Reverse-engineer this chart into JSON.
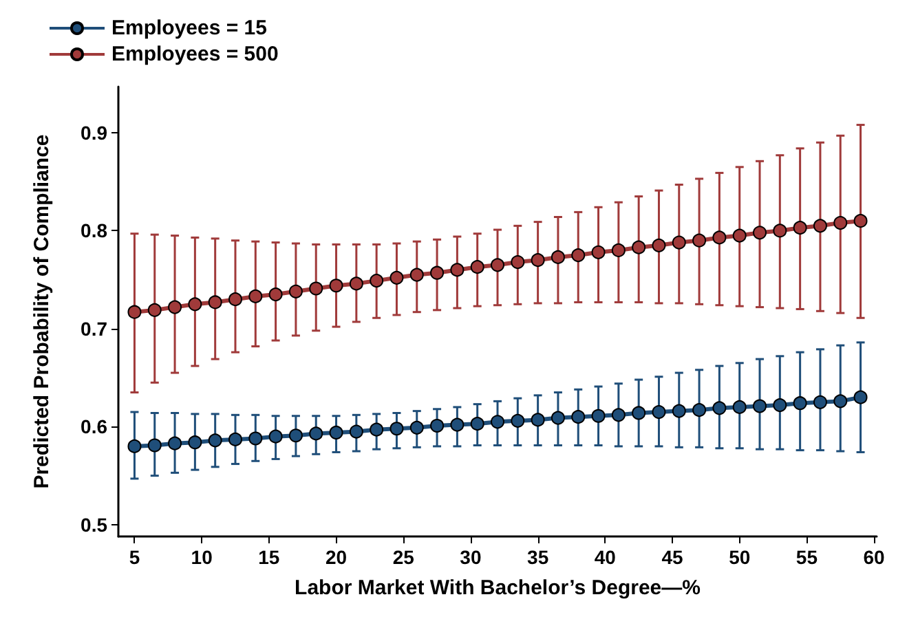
{
  "chart_data": {
    "type": "line",
    "xlabel": "Labor Market With Bachelor’s Degree—%",
    "ylabel": "Predicted Probability of Compliance",
    "x": [
      5,
      6.5,
      8,
      9.5,
      11,
      12.5,
      14,
      15.5,
      17,
      18.5,
      20,
      21.5,
      23,
      24.5,
      26,
      27.5,
      29,
      30.5,
      32,
      33.5,
      35,
      36.5,
      38,
      39.5,
      41,
      42.5,
      44,
      45.5,
      47,
      48.5,
      50,
      51.5,
      53,
      54.5,
      56,
      57.5,
      59
    ],
    "series": [
      {
        "name": "Employees = 15",
        "color": "#1f4e79",
        "values": [
          0.58,
          0.581,
          0.583,
          0.584,
          0.586,
          0.587,
          0.588,
          0.59,
          0.591,
          0.593,
          0.594,
          0.595,
          0.597,
          0.598,
          0.599,
          0.601,
          0.602,
          0.603,
          0.605,
          0.606,
          0.607,
          0.609,
          0.61,
          0.611,
          0.612,
          0.614,
          0.615,
          0.616,
          0.617,
          0.619,
          0.62,
          0.621,
          0.622,
          0.624,
          0.625,
          0.626,
          0.63
        ],
        "errors": [
          [
            0.547,
            0.615
          ],
          [
            0.55,
            0.614
          ],
          [
            0.553,
            0.614
          ],
          [
            0.556,
            0.613
          ],
          [
            0.559,
            0.613
          ],
          [
            0.562,
            0.612
          ],
          [
            0.565,
            0.612
          ],
          [
            0.567,
            0.611
          ],
          [
            0.57,
            0.611
          ],
          [
            0.572,
            0.611
          ],
          [
            0.574,
            0.611
          ],
          [
            0.575,
            0.612
          ],
          [
            0.577,
            0.613
          ],
          [
            0.578,
            0.614
          ],
          [
            0.579,
            0.616
          ],
          [
            0.58,
            0.618
          ],
          [
            0.58,
            0.62
          ],
          [
            0.581,
            0.623
          ],
          [
            0.581,
            0.626
          ],
          [
            0.581,
            0.629
          ],
          [
            0.581,
            0.632
          ],
          [
            0.581,
            0.635
          ],
          [
            0.581,
            0.638
          ],
          [
            0.581,
            0.641
          ],
          [
            0.58,
            0.644
          ],
          [
            0.58,
            0.648
          ],
          [
            0.58,
            0.651
          ],
          [
            0.579,
            0.655
          ],
          [
            0.579,
            0.658
          ],
          [
            0.578,
            0.662
          ],
          [
            0.578,
            0.665
          ],
          [
            0.577,
            0.669
          ],
          [
            0.577,
            0.672
          ],
          [
            0.576,
            0.676
          ],
          [
            0.576,
            0.679
          ],
          [
            0.575,
            0.683
          ],
          [
            0.574,
            0.686
          ]
        ]
      },
      {
        "name": "Employees = 500",
        "color": "#a03a3a",
        "values": [
          0.717,
          0.719,
          0.722,
          0.725,
          0.727,
          0.73,
          0.733,
          0.735,
          0.738,
          0.741,
          0.744,
          0.746,
          0.749,
          0.752,
          0.755,
          0.757,
          0.76,
          0.763,
          0.765,
          0.768,
          0.77,
          0.773,
          0.775,
          0.778,
          0.78,
          0.783,
          0.785,
          0.788,
          0.79,
          0.793,
          0.795,
          0.798,
          0.8,
          0.803,
          0.805,
          0.808,
          0.81
        ],
        "errors": [
          [
            0.635,
            0.797
          ],
          [
            0.645,
            0.796
          ],
          [
            0.655,
            0.795
          ],
          [
            0.662,
            0.793
          ],
          [
            0.669,
            0.792
          ],
          [
            0.676,
            0.79
          ],
          [
            0.682,
            0.789
          ],
          [
            0.688,
            0.788
          ],
          [
            0.693,
            0.787
          ],
          [
            0.698,
            0.786
          ],
          [
            0.702,
            0.786
          ],
          [
            0.707,
            0.786
          ],
          [
            0.711,
            0.786
          ],
          [
            0.714,
            0.787
          ],
          [
            0.717,
            0.789
          ],
          [
            0.719,
            0.791
          ],
          [
            0.721,
            0.794
          ],
          [
            0.723,
            0.797
          ],
          [
            0.724,
            0.801
          ],
          [
            0.725,
            0.805
          ],
          [
            0.726,
            0.809
          ],
          [
            0.726,
            0.814
          ],
          [
            0.727,
            0.819
          ],
          [
            0.727,
            0.824
          ],
          [
            0.727,
            0.829
          ],
          [
            0.727,
            0.835
          ],
          [
            0.726,
            0.841
          ],
          [
            0.726,
            0.847
          ],
          [
            0.725,
            0.853
          ],
          [
            0.724,
            0.859
          ],
          [
            0.723,
            0.865
          ],
          [
            0.722,
            0.871
          ],
          [
            0.721,
            0.877
          ],
          [
            0.72,
            0.884
          ],
          [
            0.718,
            0.89
          ],
          [
            0.716,
            0.897
          ],
          [
            0.711,
            0.908
          ]
        ]
      }
    ],
    "xlim": [
      3.8,
      60.2
    ],
    "xticks": [
      5,
      10,
      15,
      20,
      25,
      30,
      35,
      40,
      45,
      50,
      55,
      60
    ],
    "ylim": [
      0.488,
      0.947
    ],
    "yticks": [
      0.5,
      0.6,
      0.7,
      0.8,
      0.9
    ],
    "grid": false,
    "legend": "top left",
    "marker": "circle",
    "line_style": "solid"
  }
}
